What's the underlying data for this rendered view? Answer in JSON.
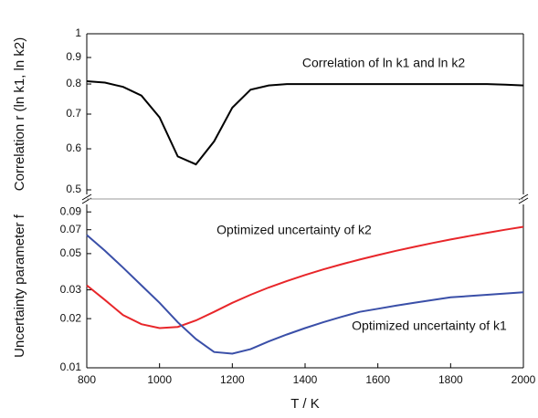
{
  "chart_data": [
    {
      "type": "line",
      "ylabel": "Correlation r (ln k1, ln k2)",
      "log_y": true,
      "ylim": [
        0.49,
        1
      ],
      "yticks": [
        0.5,
        0.6,
        0.7,
        0.8,
        0.9,
        1
      ],
      "xlim": [
        800,
        2000
      ],
      "x": [
        800,
        850,
        900,
        950,
        1000,
        1050,
        1100,
        1150,
        1200,
        1250,
        1300,
        1350,
        1400,
        1450,
        1500,
        1550,
        1600,
        1650,
        1700,
        1750,
        1800,
        1850,
        1900,
        1950,
        2000
      ],
      "series": [
        {
          "name": "Correlation of ln k1 and ln k2",
          "color": "#000000",
          "values": [
            0.81,
            0.805,
            0.79,
            0.76,
            0.69,
            0.58,
            0.56,
            0.62,
            0.72,
            0.78,
            0.795,
            0.8,
            0.8,
            0.8,
            0.8,
            0.8,
            0.8,
            0.8,
            0.8,
            0.8,
            0.8,
            0.8,
            0.8,
            0.798,
            0.795
          ]
        }
      ]
    },
    {
      "type": "line",
      "ylabel": "Uncertainty parameter f",
      "xlabel": "T / K",
      "log_y": true,
      "ylim": [
        0.01,
        0.1
      ],
      "yticks": [
        0.01,
        0.02,
        0.03,
        0.05,
        0.07,
        0.09
      ],
      "xlim": [
        800,
        2000
      ],
      "xticks": [
        800,
        1000,
        1200,
        1400,
        1600,
        1800,
        2000
      ],
      "x": [
        800,
        850,
        900,
        950,
        1000,
        1050,
        1100,
        1150,
        1200,
        1250,
        1300,
        1350,
        1400,
        1450,
        1500,
        1550,
        1600,
        1650,
        1700,
        1750,
        1800,
        1850,
        1900,
        1950,
        2000
      ],
      "series": [
        {
          "name": "Optimized uncertainty of k2",
          "color": "#e8262a",
          "values": [
            0.032,
            0.026,
            0.021,
            0.0185,
            0.0175,
            0.0178,
            0.0195,
            0.022,
            0.025,
            0.028,
            0.031,
            0.034,
            0.037,
            0.04,
            0.043,
            0.046,
            0.049,
            0.052,
            0.055,
            0.058,
            0.061,
            0.064,
            0.067,
            0.07,
            0.073
          ]
        },
        {
          "name": "Optimized uncertainty of k1",
          "color": "#3a4fa8",
          "values": [
            0.065,
            0.052,
            0.041,
            0.032,
            0.025,
            0.019,
            0.015,
            0.0125,
            0.0122,
            0.013,
            0.0145,
            0.016,
            0.0175,
            0.019,
            0.0205,
            0.022,
            0.023,
            0.024,
            0.025,
            0.026,
            0.027,
            0.0275,
            0.028,
            0.0285,
            0.029
          ]
        }
      ]
    }
  ]
}
